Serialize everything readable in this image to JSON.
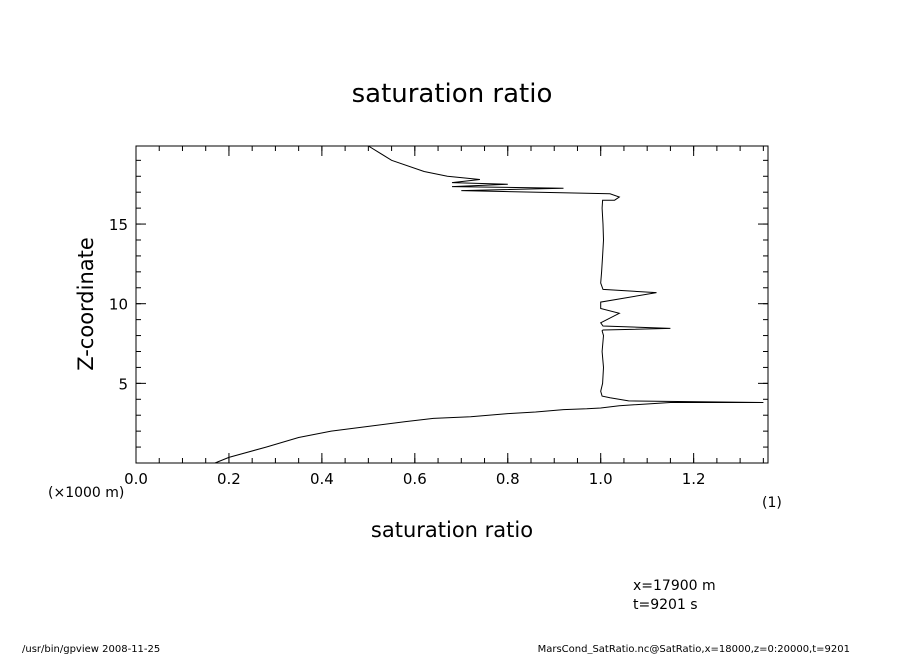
{
  "chart_data": {
    "type": "line",
    "title": "saturation ratio",
    "xlabel": "saturation ratio",
    "ylabel": "Z-coordinate",
    "x_unit": "(1)",
    "y_unit": "(×1000 m)",
    "xlim": [
      0.0,
      1.36
    ],
    "ylim": [
      0.0,
      19.9
    ],
    "x_ticks": [
      0.0,
      0.2,
      0.4,
      0.6,
      0.8,
      1.0,
      1.2
    ],
    "x_tick_labels": [
      "0.0",
      "0.2",
      "0.4",
      "0.6",
      "0.8",
      "1.0",
      "1.2"
    ],
    "y_ticks": [
      5,
      10,
      15
    ],
    "y_tick_labels": [
      "5",
      "10",
      "15"
    ],
    "grid": false,
    "series": [
      {
        "x": [
          0.17,
          0.2,
          0.28,
          0.35,
          0.42,
          0.5,
          0.58,
          0.64,
          0.72,
          0.8,
          0.86,
          0.92,
          0.97,
          1.0,
          1.04,
          1.15,
          1.35,
          1.06,
          1.02,
          1.003,
          1.0,
          1.004,
          1.006,
          1.003,
          1.006,
          1.003,
          1.005,
          1.15,
          1.005,
          1.0,
          1.04,
          1.0,
          1.0,
          1.12,
          1.005,
          1.0,
          1.002,
          1.004,
          1.006,
          1.005,
          1.003,
          1.004,
          1.03,
          1.04,
          1.02,
          0.7,
          0.92,
          0.68,
          0.8,
          0.68,
          0.74,
          0.67,
          0.62,
          0.55,
          0.5
        ],
        "y": [
          0.0,
          0.35,
          1.0,
          1.6,
          2.0,
          2.3,
          2.6,
          2.8,
          2.9,
          3.1,
          3.2,
          3.35,
          3.4,
          3.45,
          3.6,
          3.8,
          3.8,
          3.9,
          4.1,
          4.2,
          4.5,
          5.0,
          6.0,
          7.0,
          8.0,
          8.3,
          8.35,
          8.45,
          8.6,
          8.8,
          9.4,
          9.7,
          10.1,
          10.7,
          10.9,
          11.3,
          12.0,
          13.0,
          14.0,
          15.0,
          16.0,
          16.5,
          16.5,
          16.7,
          16.9,
          17.1,
          17.25,
          17.35,
          17.5,
          17.6,
          17.8,
          18.0,
          18.3,
          19.0,
          19.9
        ]
      }
    ]
  },
  "info": {
    "x_position": "x=17900  m",
    "time": "t=9201  s"
  },
  "footer": {
    "left": "/usr/bin/gpview   2008-11-25",
    "right": "MarsCond_SatRatio.nc@SatRatio,x=18000,z=0:20000,t=9201"
  }
}
